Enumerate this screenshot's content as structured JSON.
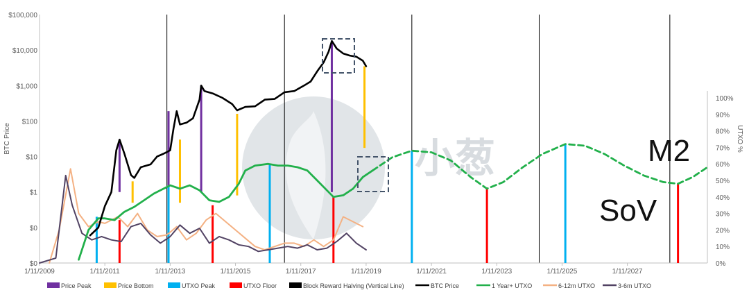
{
  "watermark": "小葱",
  "chart_data": {
    "type": "line",
    "ylabel_left": "BTC Price",
    "ylabel_right": "UTXO %",
    "y_left_scale": "log",
    "y_left_ticks": [
      "$0",
      "$0",
      "$1",
      "$10",
      "$100",
      "$1,000",
      "$10,000",
      "$100,000"
    ],
    "y_right_ticks": [
      "0%",
      "10%",
      "20%",
      "30%",
      "40%",
      "50%",
      "60%",
      "70%",
      "80%",
      "90%",
      "100%"
    ],
    "x_ticks": [
      "1/11/2009",
      "1/11/2011",
      "1/11/2013",
      "1/11/2015",
      "1/11/2017",
      "1/11/2019",
      "1/11/2021",
      "1/11/2023",
      "1/11/2025",
      "1/11/2027"
    ],
    "x_range": [
      2009.0,
      2029.45
    ],
    "halvings": [
      2012.9,
      2016.5,
      2020.4,
      2024.3,
      2028.3
    ],
    "annotations": [
      "M2",
      "SoV"
    ],
    "colors": {
      "price_peak": "#7030A0",
      "price_bottom": "#FFC000",
      "utxo_peak": "#00B0F0",
      "utxo_floor": "#FF0000",
      "halving": "#000000",
      "btc": "#000000",
      "utxo_1y": "#22B04B",
      "utxo_6_12m": "#F4B183",
      "utxo_3_6m": "#514263",
      "box": "#44546A"
    },
    "legend": [
      {
        "label": "Price Peak",
        "kind": "bar",
        "key": "price_peak"
      },
      {
        "label": "Price Bottom",
        "kind": "bar",
        "key": "price_bottom"
      },
      {
        "label": "UTXO Peak",
        "kind": "bar",
        "key": "utxo_peak"
      },
      {
        "label": "UTXO Floor",
        "kind": "bar",
        "key": "utxo_floor"
      },
      {
        "label": "Block Reward Halving (Vertical Line)",
        "kind": "bar",
        "key": "halving"
      },
      {
        "label": "BTC Price",
        "kind": "line",
        "key": "btc"
      },
      {
        "label": "1 Year+ UTXO",
        "kind": "line",
        "key": "utxo_1y"
      },
      {
        "label": "6-12m UTXO",
        "kind": "line",
        "key": "utxo_6_12m"
      },
      {
        "label": "3-6m UTXO",
        "kind": "line",
        "key": "utxo_3_6m"
      }
    ],
    "price_peaks": [
      [
        2011.45,
        30
      ],
      [
        2012.95,
        190
      ],
      [
        2013.95,
        1000
      ],
      [
        2017.95,
        18000
      ]
    ],
    "price_bottoms": [
      [
        2011.85,
        2
      ],
      [
        2013.3,
        30
      ],
      [
        2015.05,
        160
      ],
      [
        2018.95,
        3500
      ]
    ],
    "utxo_peaks": [
      [
        2010.75,
        28
      ],
      [
        2012.95,
        47
      ],
      [
        2016.05,
        60
      ],
      [
        2020.4,
        68
      ],
      [
        2025.1,
        72
      ]
    ],
    "utxo_floors": [
      [
        2011.45,
        26
      ],
      [
        2014.3,
        35
      ],
      [
        2018.0,
        40
      ],
      [
        2022.7,
        45
      ],
      [
        2028.55,
        48
      ]
    ],
    "series": [
      {
        "name": "BTC Price",
        "key": "btc",
        "axis": "left",
        "x": [
          2010.55,
          2010.8,
          2011.0,
          2011.2,
          2011.35,
          2011.45,
          2011.6,
          2011.8,
          2011.9,
          2012.1,
          2012.4,
          2012.6,
          2012.8,
          2013.0,
          2013.1,
          2013.2,
          2013.3,
          2013.5,
          2013.7,
          2013.9,
          2013.95,
          2014.05,
          2014.3,
          2014.6,
          2014.9,
          2015.05,
          2015.3,
          2015.6,
          2015.9,
          2016.2,
          2016.5,
          2016.8,
          2017.1,
          2017.3,
          2017.5,
          2017.7,
          2017.85,
          2017.95,
          2018.1,
          2018.3,
          2018.5,
          2018.7,
          2018.9,
          2019.0
        ],
        "y": [
          0.06,
          0.1,
          0.4,
          1.0,
          15,
          30,
          12,
          3,
          2.5,
          5,
          6,
          10,
          12,
          15,
          60,
          190,
          80,
          90,
          120,
          400,
          1000,
          700,
          600,
          450,
          300,
          200,
          250,
          260,
          400,
          420,
          650,
          700,
          1000,
          1300,
          2500,
          4500,
          9000,
          18000,
          11000,
          8000,
          7000,
          6500,
          5000,
          3500
        ]
      },
      {
        "name": "1 Year+ UTXO",
        "key": "utxo_1y",
        "axis": "right",
        "x": [
          2010.2,
          2010.5,
          2010.8,
          2011.0,
          2011.3,
          2011.6,
          2011.9,
          2012.2,
          2012.5,
          2012.8,
          2013.0,
          2013.3,
          2013.6,
          2013.9,
          2014.2,
          2014.5,
          2014.8,
          2015.1,
          2015.3,
          2015.6,
          2016.0,
          2016.3,
          2016.6,
          2016.9,
          2017.2,
          2017.5,
          2017.8,
          2018.0,
          2018.3,
          2018.6,
          2018.9,
          2019.2
        ],
        "y": [
          2,
          20,
          27,
          27,
          26,
          31,
          34,
          38,
          42,
          45,
          47,
          45,
          47,
          44,
          38,
          37,
          40,
          48,
          56,
          59,
          60,
          59,
          59,
          58,
          56,
          50,
          44,
          40,
          41,
          45,
          52,
          56
        ]
      },
      {
        "name": "1 Year+ UTXO projection",
        "key": "utxo_1y",
        "axis": "right",
        "dashed": true,
        "x": [
          2019.2,
          2019.8,
          2020.4,
          2021.0,
          2021.6,
          2022.2,
          2022.7,
          2023.2,
          2023.8,
          2024.4,
          2025.1,
          2025.7,
          2026.3,
          2026.9,
          2027.5,
          2028.1,
          2028.55,
          2029.0,
          2029.45
        ],
        "y": [
          56,
          64,
          68,
          67,
          62,
          52,
          45,
          49,
          58,
          66,
          72,
          71,
          66,
          59,
          53,
          49,
          48,
          52,
          58
        ]
      },
      {
        "name": "6-12m UTXO",
        "key": "utxo_6_12m",
        "axis": "right",
        "x": [
          2009.3,
          2009.6,
          2009.95,
          2010.2,
          2010.5,
          2010.8,
          2011.0,
          2011.2,
          2011.4,
          2011.7,
          2012.0,
          2012.3,
          2012.6,
          2012.9,
          2013.2,
          2013.5,
          2013.8,
          2014.1,
          2014.4,
          2014.7,
          2015.0,
          2015.3,
          2015.6,
          2015.9,
          2016.2,
          2016.5,
          2016.8,
          2017.1,
          2017.4,
          2017.7,
          2018.0,
          2018.3,
          2018.6,
          2018.9
        ],
        "y": [
          0,
          20,
          57,
          30,
          22,
          25,
          24,
          26,
          28,
          22,
          30,
          20,
          16,
          17,
          22,
          14,
          18,
          26,
          30,
          25,
          20,
          15,
          10,
          8,
          10,
          12,
          12,
          10,
          14,
          10,
          14,
          28,
          25,
          22
        ]
      },
      {
        "name": "3-6m UTXO",
        "key": "utxo_3_6m",
        "axis": "right",
        "x": [
          2009.0,
          2009.5,
          2009.8,
          2010.0,
          2010.3,
          2010.6,
          2010.9,
          2011.2,
          2011.5,
          2011.8,
          2012.1,
          2012.4,
          2012.7,
          2013.0,
          2013.3,
          2013.6,
          2013.9,
          2014.2,
          2014.5,
          2014.8,
          2015.1,
          2015.4,
          2015.7,
          2016.0,
          2016.3,
          2016.6,
          2016.9,
          2017.2,
          2017.5,
          2017.8,
          2018.1,
          2018.4,
          2018.7,
          2019.0
        ],
        "y": [
          0,
          3,
          53,
          35,
          18,
          14,
          16,
          14,
          13,
          22,
          24,
          17,
          12,
          16,
          23,
          18,
          21,
          12,
          16,
          14,
          11,
          10,
          7,
          8,
          9,
          10,
          9,
          11,
          8,
          9,
          13,
          18,
          12,
          8
        ]
      }
    ]
  }
}
